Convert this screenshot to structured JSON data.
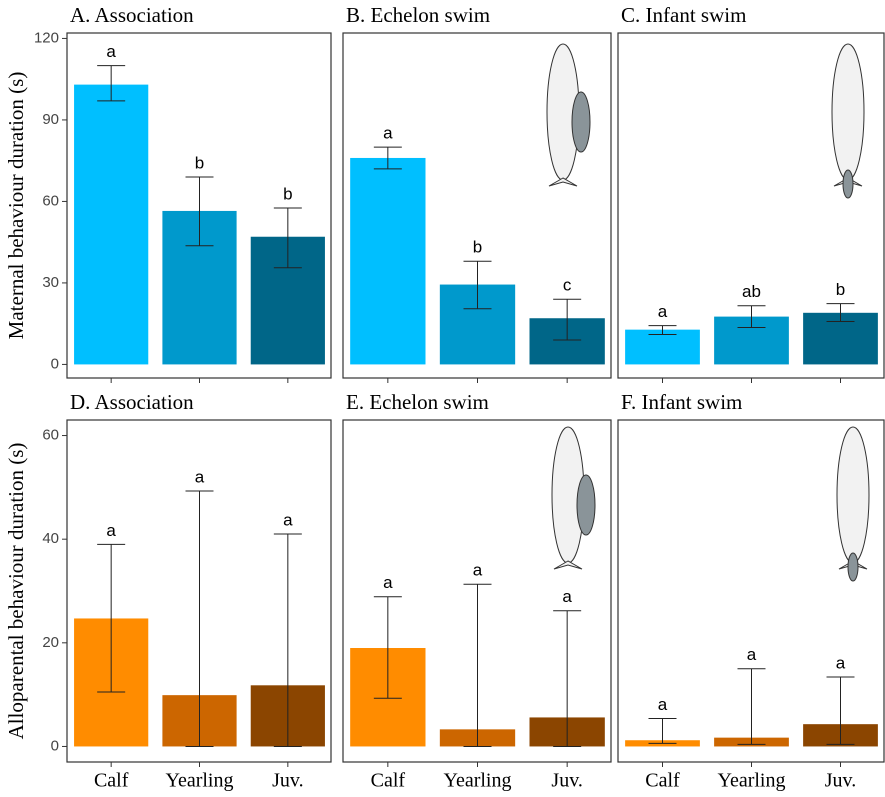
{
  "chart_data": [
    {
      "type": "bar",
      "title": "A. Association",
      "ylabel": "Maternal behaviour duration (s)",
      "categories": [
        null,
        null,
        null
      ],
      "values": [
        103,
        56.5,
        47
      ],
      "upper": [
        110,
        69,
        57.6
      ],
      "lower": [
        97,
        43.7,
        35.6
      ],
      "letters": [
        "a",
        "b",
        "b"
      ],
      "colors": [
        "#00bfff",
        "#0099cc",
        "#006688"
      ],
      "ylim": [
        -5,
        122
      ],
      "yticks": [
        0,
        30,
        60,
        90,
        120
      ]
    },
    {
      "type": "bar",
      "title": "B. Echelon swim",
      "categories": [
        null,
        null,
        null
      ],
      "values": [
        76,
        29.4,
        17
      ],
      "upper": [
        80,
        38,
        24
      ],
      "lower": [
        72,
        20.5,
        9
      ],
      "letters": [
        "a",
        "b",
        "c"
      ],
      "colors": [
        "#00bfff",
        "#0099cc",
        "#006688"
      ],
      "ylim": [
        -5,
        122
      ]
    },
    {
      "type": "bar",
      "title": "C. Infant swim",
      "categories": [
        null,
        null,
        null
      ],
      "values": [
        12.8,
        17.6,
        19
      ],
      "upper": [
        14.3,
        21.6,
        22.4
      ],
      "lower": [
        11,
        13.6,
        15.8
      ],
      "letters": [
        "a",
        "ab",
        "b"
      ],
      "colors": [
        "#00bfff",
        "#0099cc",
        "#006688"
      ],
      "ylim": [
        -5,
        122
      ]
    },
    {
      "type": "bar",
      "title": "D. Association",
      "ylabel": "Alloparental behaviour duration (s)",
      "categories": [
        "Calf",
        "Yearling",
        "Juv."
      ],
      "values": [
        24.7,
        9.9,
        11.8
      ],
      "upper": [
        39,
        49.3,
        41
      ],
      "lower": [
        10.5,
        0,
        0
      ],
      "letters": [
        "a",
        "a",
        "a"
      ],
      "colors": [
        "#ff8c00",
        "#cc6600",
        "#8b4500"
      ],
      "ylim": [
        -3,
        63
      ],
      "yticks": [
        0,
        20,
        40,
        60
      ]
    },
    {
      "type": "bar",
      "title": "E. Echelon swim",
      "categories": [
        "Calf",
        "Yearling",
        "Juv."
      ],
      "values": [
        19,
        3.3,
        5.6
      ],
      "upper": [
        28.9,
        31.3,
        26.2
      ],
      "lower": [
        9.3,
        0,
        0
      ],
      "letters": [
        "a",
        "a",
        "a"
      ],
      "colors": [
        "#ff8c00",
        "#cc6600",
        "#8b4500"
      ],
      "ylim": [
        -3,
        63
      ]
    },
    {
      "type": "bar",
      "title": "F. Infant swim",
      "categories": [
        "Calf",
        "Yearling",
        "Juv."
      ],
      "values": [
        1.2,
        1.7,
        4.3
      ],
      "upper": [
        5.4,
        15,
        13.4
      ],
      "lower": [
        0.6,
        0.4,
        0.4
      ],
      "letters": [
        "a",
        "a",
        "a"
      ],
      "colors": [
        "#ff8c00",
        "#cc6600",
        "#8b4500"
      ],
      "ylim": [
        -3,
        63
      ]
    }
  ]
}
